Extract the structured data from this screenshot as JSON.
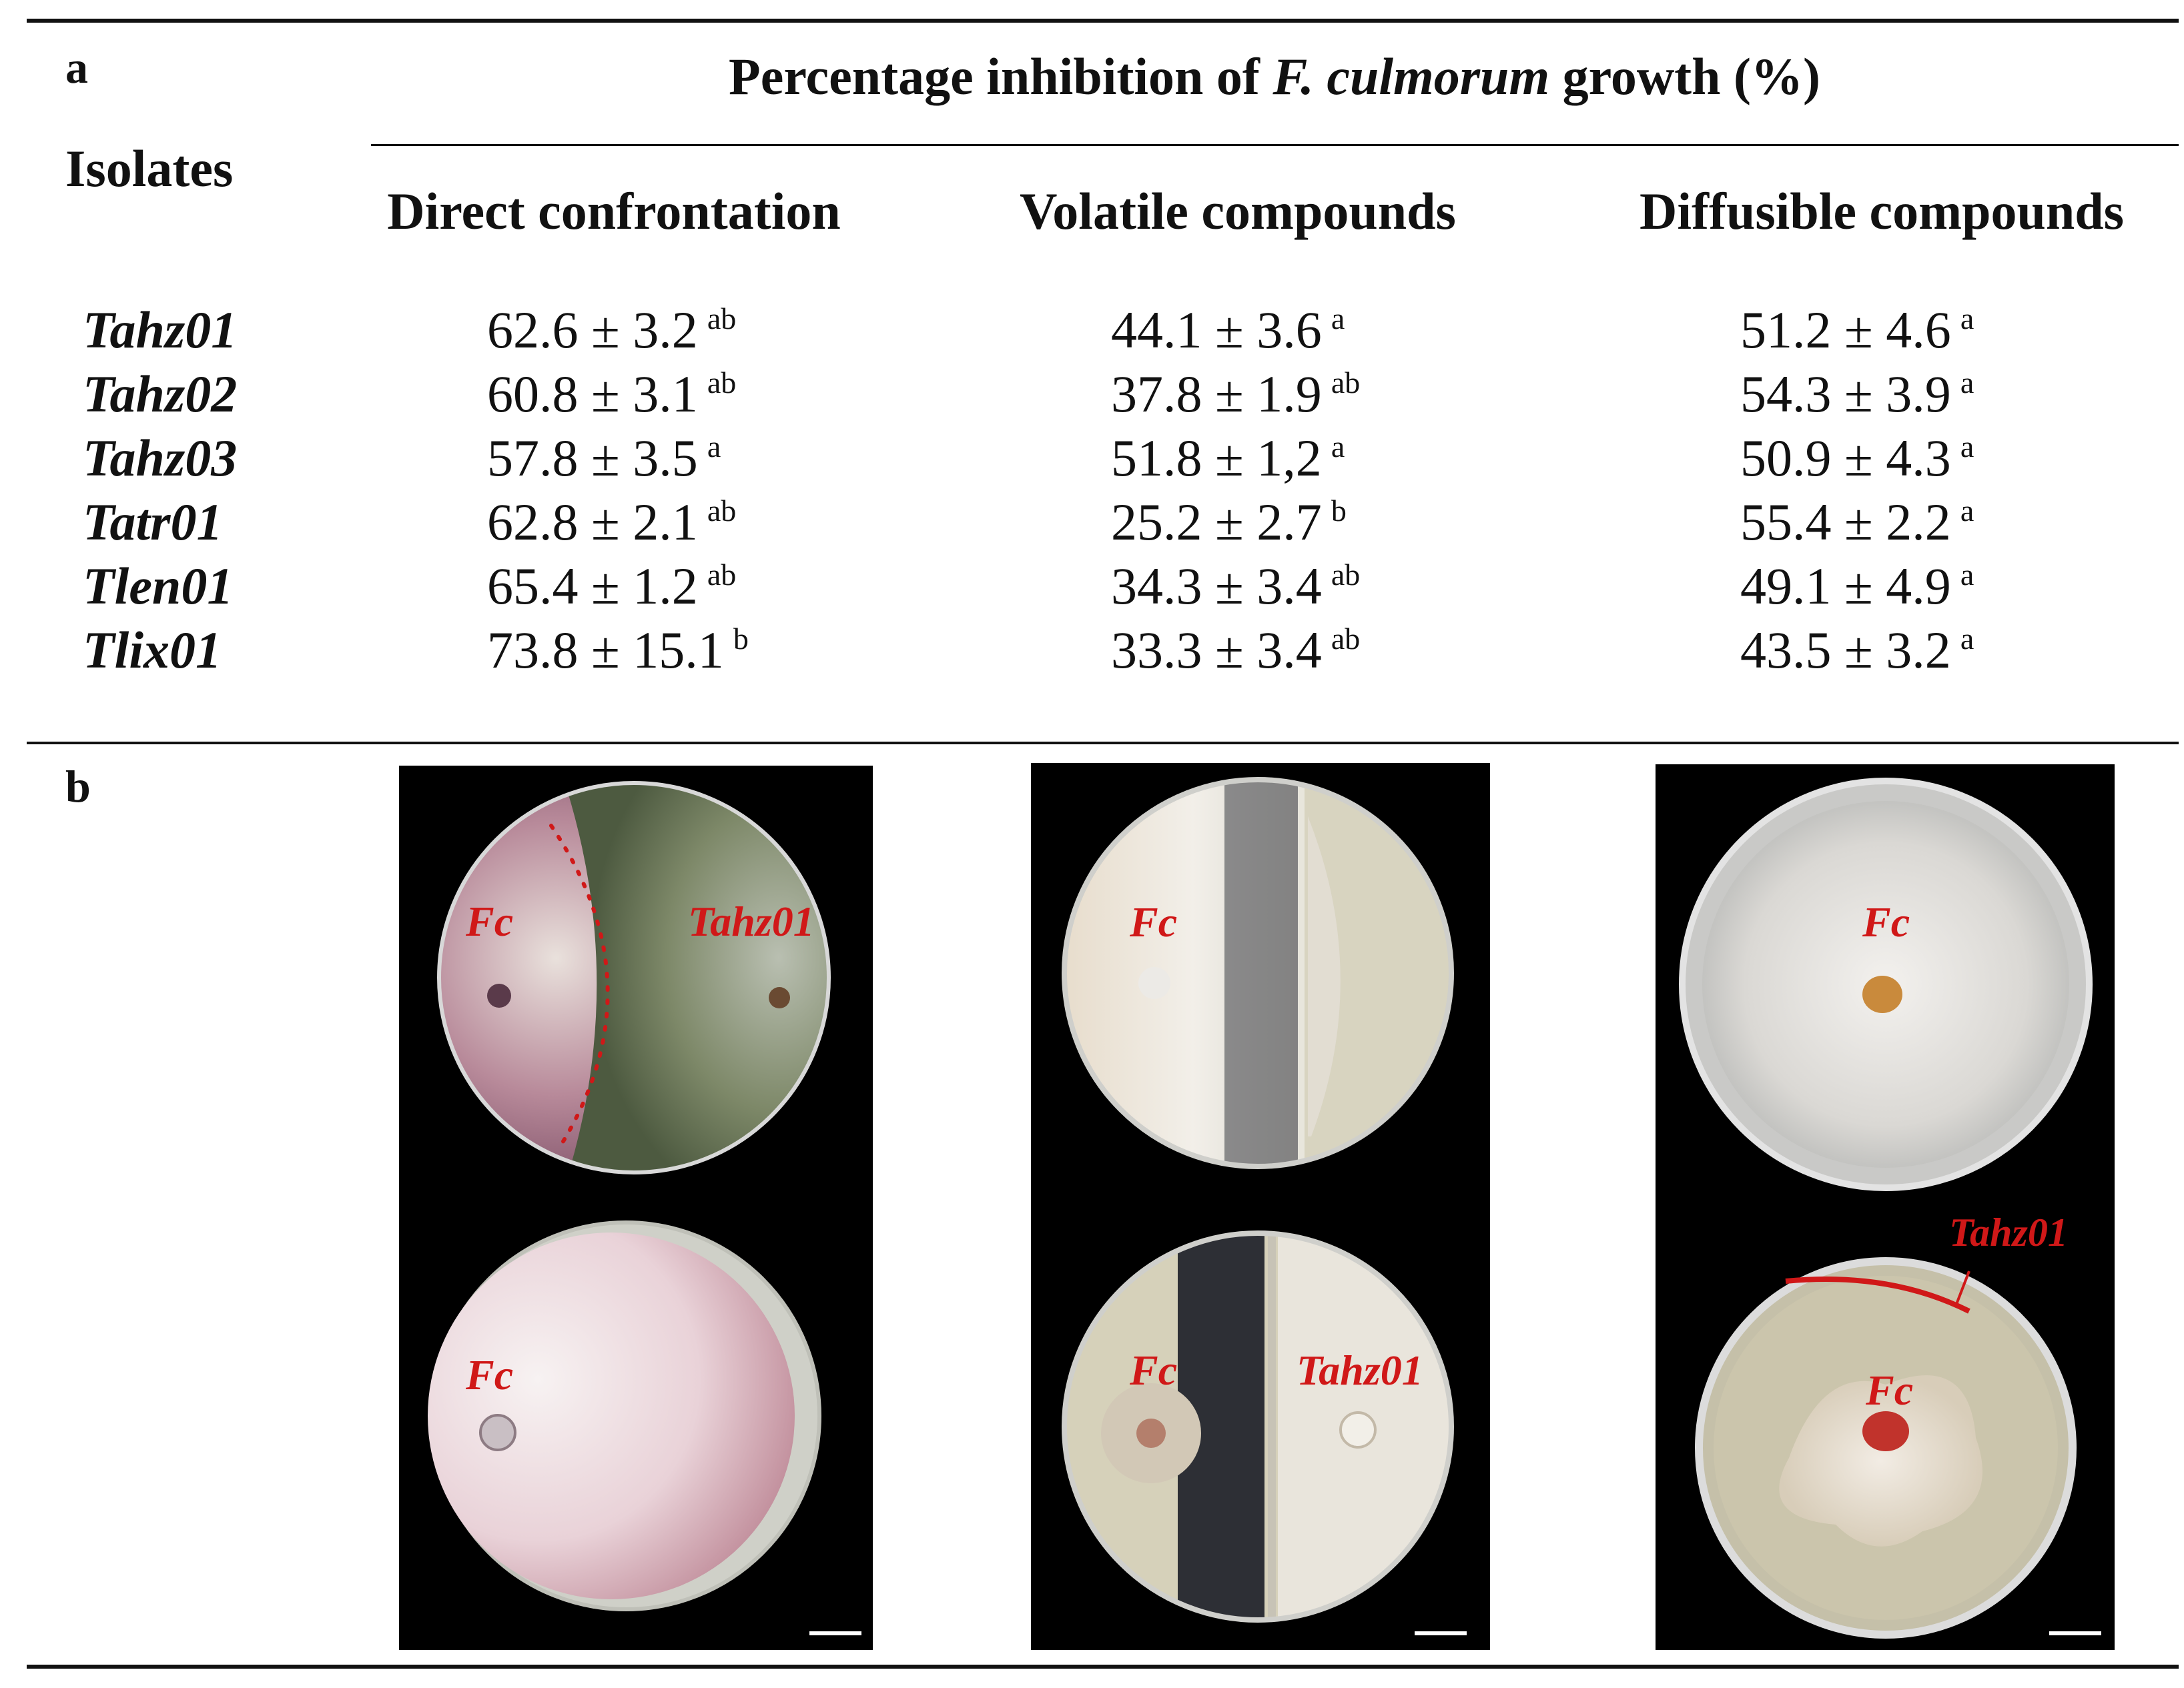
{
  "panel_a": {
    "label": "a",
    "title_prefix": "Percentage inhibition of ",
    "title_italic": "F. culmorum",
    "title_suffix": " growth (%)",
    "row_header": "Isolates",
    "columns": [
      "Direct confrontation",
      "Volatile compounds",
      "Diffusible compounds"
    ],
    "rows": [
      {
        "isolate": "Tahz01",
        "cells": [
          {
            "value": "62.6 ± 3.2",
            "letter": "ab"
          },
          {
            "value": "44.1 ± 3.6",
            "letter": "a"
          },
          {
            "value": "51.2 ± 4.6",
            "letter": "a"
          }
        ]
      },
      {
        "isolate": "Tahz02",
        "cells": [
          {
            "value": "60.8 ± 3.1",
            "letter": "ab"
          },
          {
            "value": "37.8 ± 1.9",
            "letter": "ab"
          },
          {
            "value": "54.3 ± 3.9",
            "letter": "a"
          }
        ]
      },
      {
        "isolate": "Tahz03",
        "cells": [
          {
            "value": "57.8 ± 3.5",
            "letter": "a"
          },
          {
            "value": "51.8 ± 1,2",
            "letter": "a"
          },
          {
            "value": "50.9 ± 4.3",
            "letter": "a"
          }
        ]
      },
      {
        "isolate": "Tatr01",
        "cells": [
          {
            "value": "62.8 ± 2.1",
            "letter": "ab"
          },
          {
            "value": "25.2 ± 2.7",
            "letter": "b"
          },
          {
            "value": "55.4 ± 2.2",
            "letter": "a"
          }
        ]
      },
      {
        "isolate": "Tlen01",
        "cells": [
          {
            "value": "65.4 ± 1.2",
            "letter": "ab"
          },
          {
            "value": "34.3 ± 3.4",
            "letter": "ab"
          },
          {
            "value": "49.1 ± 4.9",
            "letter": "a"
          }
        ]
      },
      {
        "isolate": "Tlix01",
        "cells": [
          {
            "value": "73.8 ± 15.1",
            "letter": "b"
          },
          {
            "value": "33.3 ± 3.4",
            "letter": "ab"
          },
          {
            "value": "43.5 ± 3.2",
            "letter": "a"
          }
        ]
      }
    ]
  },
  "panel_b": {
    "label": "b",
    "photo_labels": {
      "fc": "Fc",
      "isolate": "Tahz01"
    }
  },
  "colors": {
    "label_red": "#d01818",
    "rule": "#111111",
    "photo_bg": "#000000"
  }
}
